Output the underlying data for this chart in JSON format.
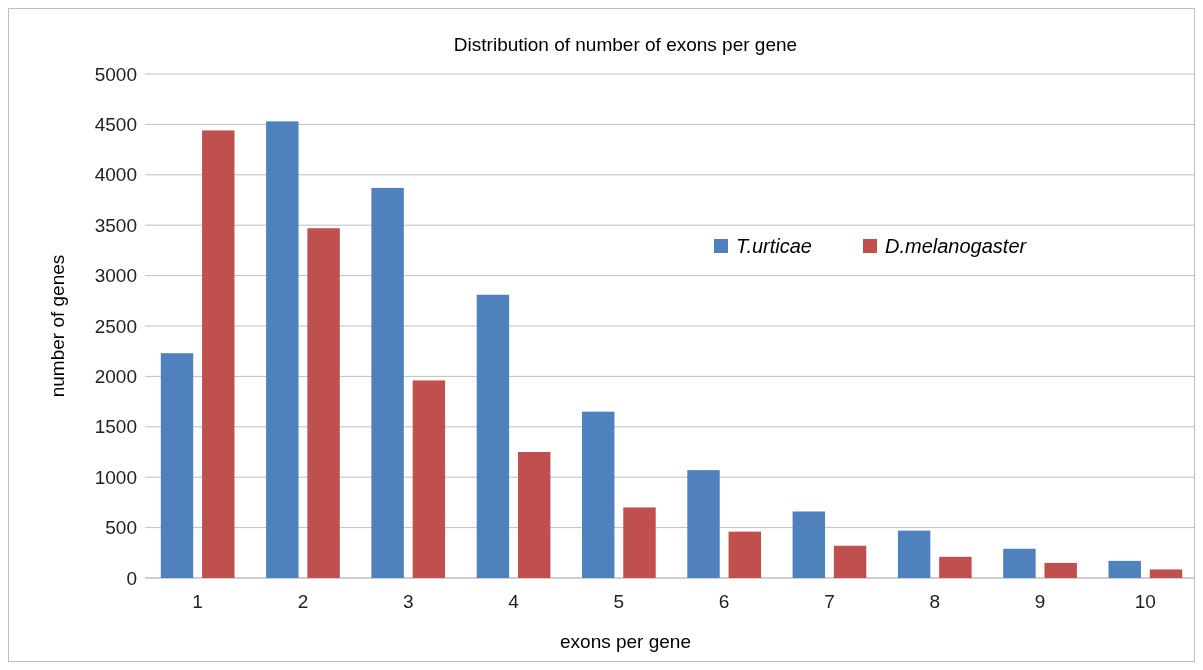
{
  "chart_data": {
    "type": "bar",
    "title": "Distribution of number of exons per gene",
    "xlabel": "exons per gene",
    "ylabel": "number of genes",
    "categories": [
      "1",
      "2",
      "3",
      "4",
      "5",
      "6",
      "7",
      "8",
      "9",
      "10"
    ],
    "series": [
      {
        "name": "T.urticae",
        "color": "#4f81bd",
        "values": [
          2230,
          4530,
          3870,
          2810,
          1650,
          1070,
          660,
          470,
          290,
          170
        ]
      },
      {
        "name": "D.melanogaster",
        "color": "#c0504d",
        "values": [
          4440,
          3470,
          1960,
          1250,
          700,
          460,
          320,
          210,
          150,
          85
        ]
      }
    ],
    "ylim": [
      0,
      5000
    ],
    "yticks": [
      0,
      500,
      1000,
      1500,
      2000,
      2500,
      3000,
      3500,
      4000,
      4500,
      5000
    ],
    "grid": "y",
    "legend": "top right"
  }
}
